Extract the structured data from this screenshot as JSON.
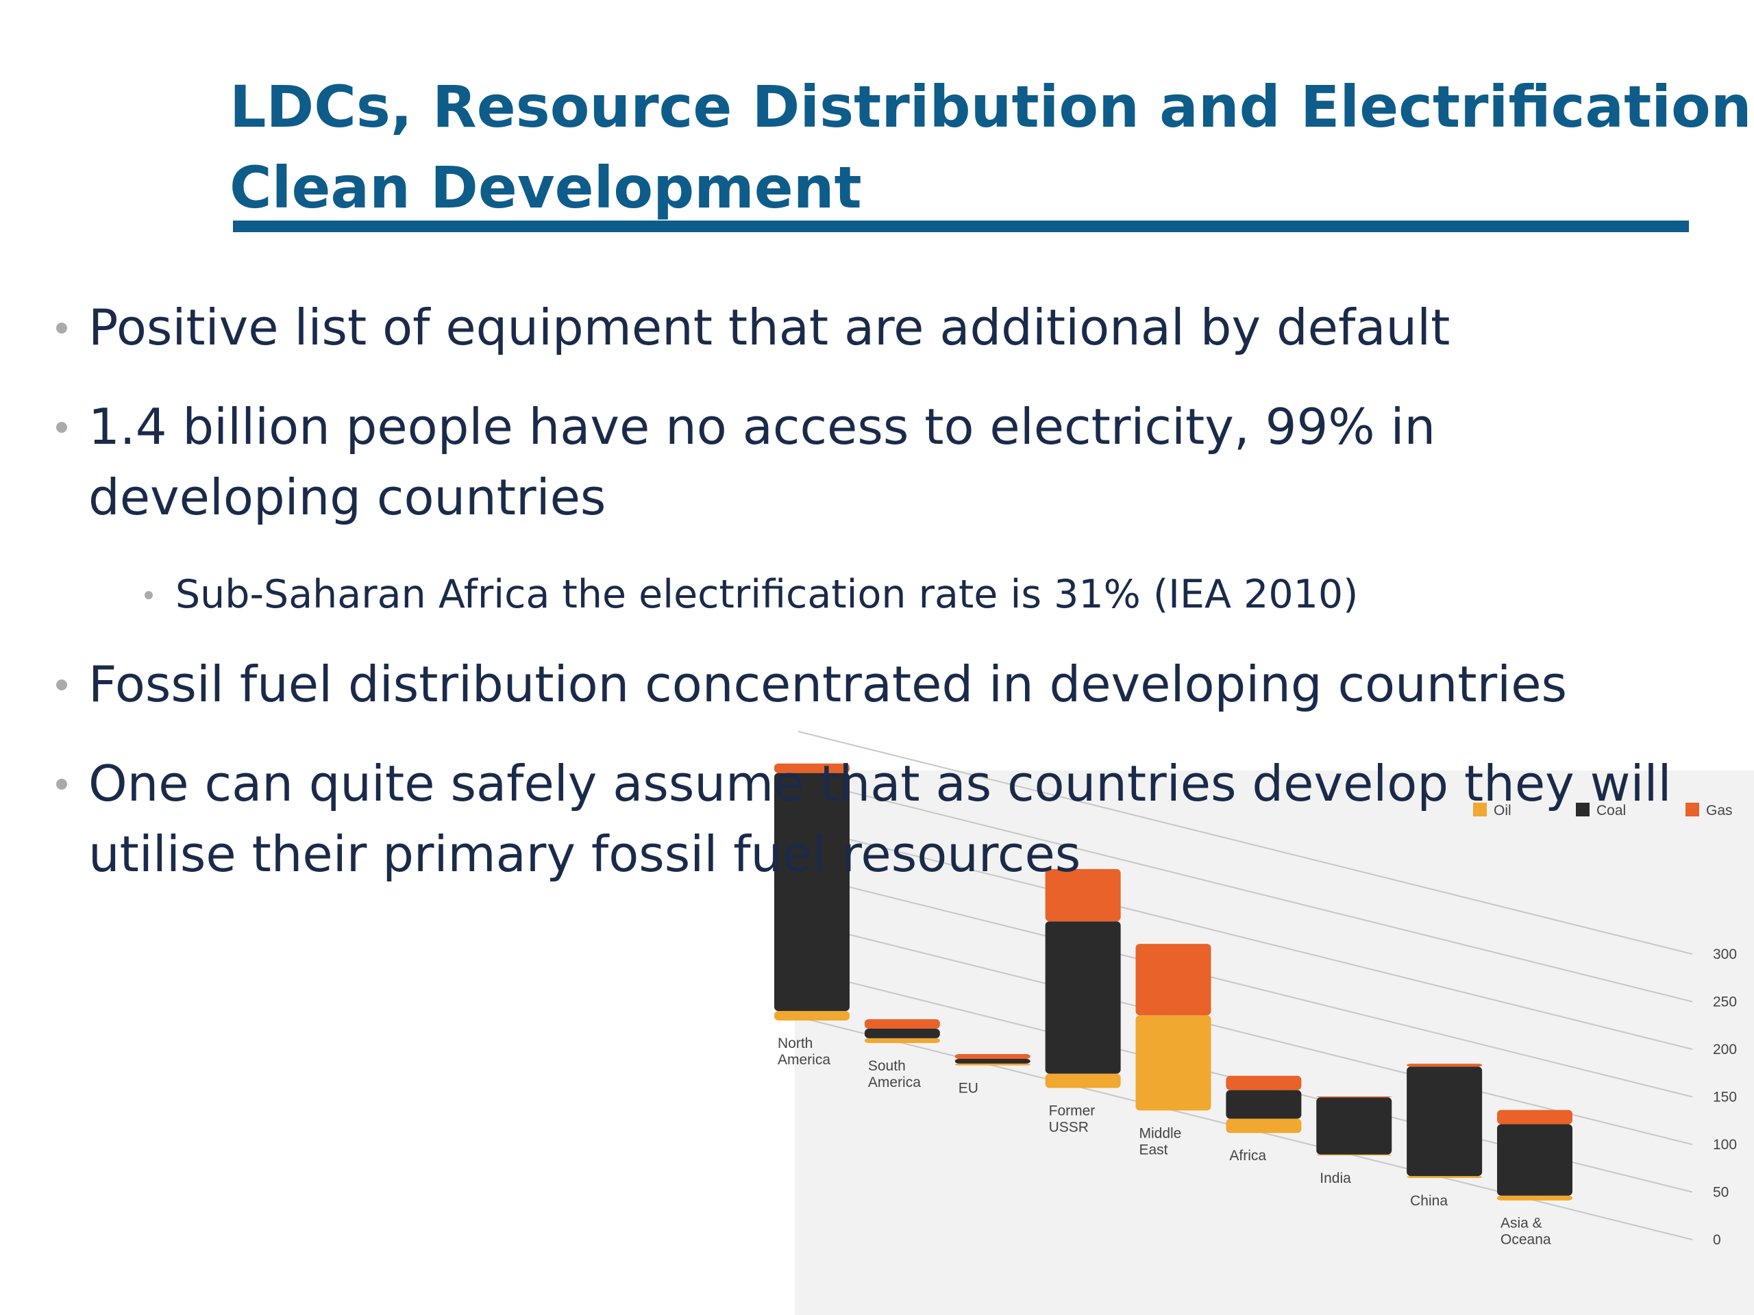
{
  "slide": {
    "title_lines": [
      "LDCs, Resource Distribution and Electrification,",
      "Clean Development"
    ],
    "bullets": [
      {
        "level": 1,
        "lines": [
          "Positive list of equipment that are additional by default"
        ]
      },
      {
        "level": 1,
        "lines": [
          "1.4 billion people have no access to electricity, 99% in",
          "developing countries"
        ]
      },
      {
        "level": 2,
        "lines": [
          "Sub-Saharan Africa the electrification rate is 31% (IEA 2010)"
        ]
      },
      {
        "level": 1,
        "lines": [
          "Fossil fuel distribution concentrated in developing countries"
        ]
      },
      {
        "level": 1,
        "lines": [
          "One can quite safely assume that as countries develop they will",
          "utilise their primary fossil fuel resources"
        ]
      }
    ]
  },
  "chart_data": {
    "type": "bar",
    "stacked": true,
    "categories": [
      "North America",
      "South America",
      "EU",
      "Former USSR",
      "Middle East",
      "Africa",
      "India",
      "China",
      "Asia & Oceana"
    ],
    "series": [
      {
        "name": "Oil",
        "color": "#f0a830",
        "values": [
          10,
          5,
          2,
          15,
          100,
          15,
          1,
          2,
          5
        ]
      },
      {
        "name": "Coal",
        "color": "#2b2b2b",
        "values": [
          250,
          10,
          5,
          160,
          0,
          30,
          60,
          115,
          75
        ]
      },
      {
        "name": "Gas",
        "color": "#e8622a",
        "values": [
          10,
          10,
          5,
          55,
          75,
          15,
          1,
          3,
          15
        ]
      }
    ],
    "ylim": [
      0,
      300
    ],
    "yticks": [
      0,
      50,
      100,
      150,
      200,
      250,
      300
    ],
    "grid": true
  }
}
